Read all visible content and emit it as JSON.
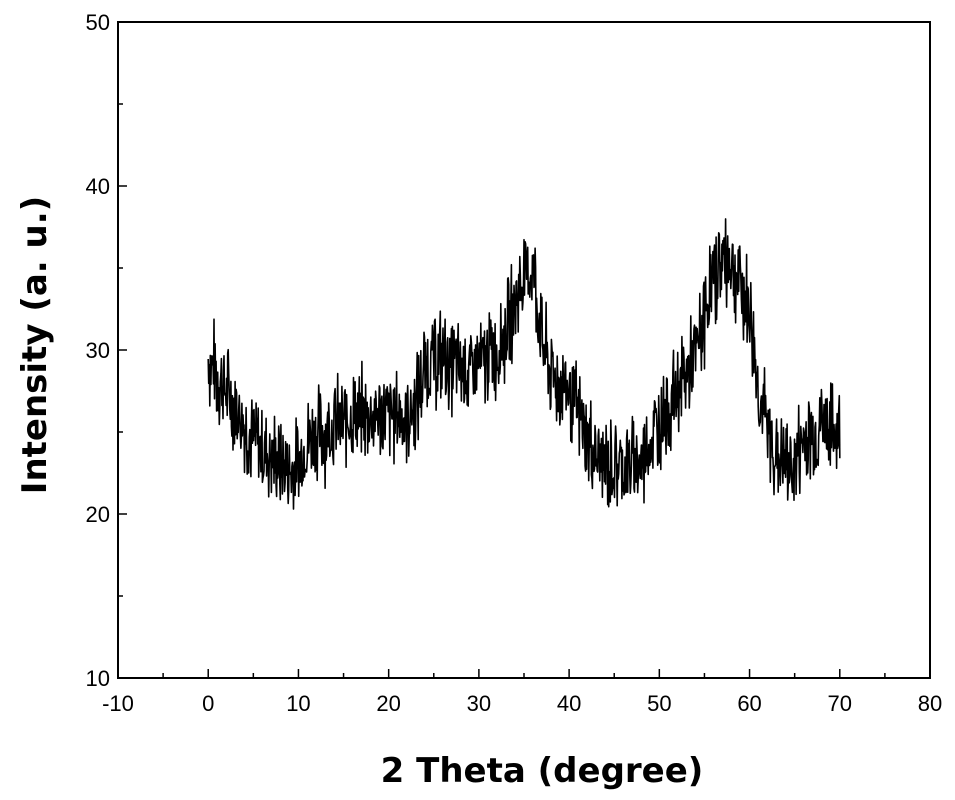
{
  "chart_data": {
    "type": "line",
    "xlabel": "2 Theta (degree)",
    "ylabel": "Intensity (a. u.)",
    "xlim": [
      -10,
      80
    ],
    "ylim": [
      10,
      50
    ],
    "x_ticks": [
      -10,
      0,
      10,
      20,
      30,
      40,
      50,
      60,
      70,
      80
    ],
    "y_ticks": [
      10,
      20,
      30,
      40,
      50
    ],
    "grid": false,
    "line_color": "#000000",
    "series": [
      {
        "x": [
          0,
          1,
          2,
          3,
          4,
          5,
          6,
          7,
          8,
          9,
          10,
          11,
          12,
          13,
          14,
          15,
          16,
          17,
          18,
          19,
          20,
          21,
          22,
          23,
          24,
          25,
          26,
          27,
          28,
          29,
          30,
          31,
          32,
          33,
          34,
          35,
          36,
          37,
          38,
          39,
          40,
          41,
          42,
          43,
          44,
          45,
          46,
          47,
          48,
          49,
          50,
          51,
          52,
          53,
          54,
          55,
          56,
          57,
          58,
          59,
          60,
          61,
          62,
          63,
          64,
          65,
          66,
          67,
          68,
          69,
          70
        ],
        "y": [
          29.5,
          28.5,
          27.5,
          26.5,
          25.5,
          24.5,
          24.0,
          23.5,
          23.0,
          22.5,
          23.0,
          24.5,
          25.0,
          25.0,
          25.5,
          25.5,
          26.0,
          26.0,
          26.0,
          26.0,
          26.0,
          26.0,
          26.0,
          26.5,
          29.0,
          29.5,
          29.5,
          29.0,
          29.0,
          28.5,
          29.0,
          29.5,
          30.0,
          31.0,
          33.0,
          34.5,
          35.0,
          30.5,
          28.5,
          28.0,
          27.5,
          26.0,
          24.5,
          23.5,
          23.0,
          23.0,
          23.0,
          23.0,
          23.0,
          24.5,
          25.5,
          26.5,
          27.5,
          28.5,
          29.5,
          32.0,
          34.5,
          35.5,
          35.5,
          34.0,
          32.5,
          27.5,
          25.0,
          23.5,
          23.0,
          23.0,
          24.5,
          25.0,
          25.5,
          25.0,
          25.0
        ],
        "noise_amplitude": 3.5
      }
    ]
  }
}
